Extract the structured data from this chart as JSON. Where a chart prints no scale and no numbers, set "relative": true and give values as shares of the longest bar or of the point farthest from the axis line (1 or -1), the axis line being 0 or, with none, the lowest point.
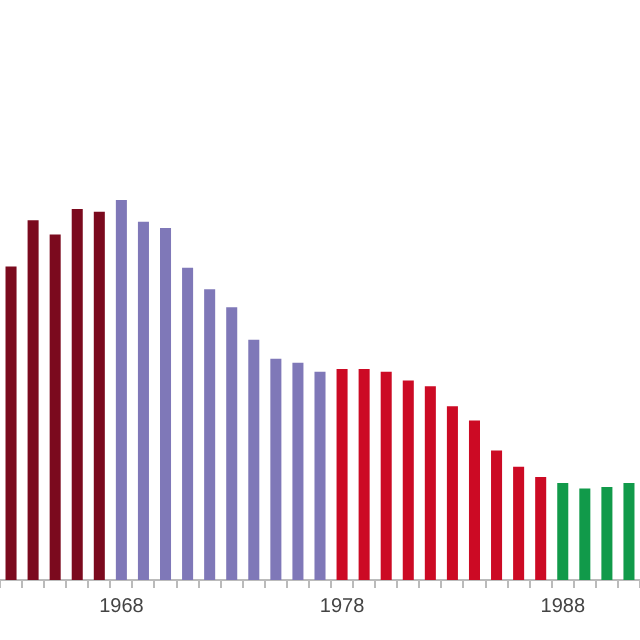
{
  "chart_data": {
    "type": "bar",
    "relative": true,
    "categories": [
      null,
      null,
      null,
      null,
      null,
      "1968",
      null,
      null,
      null,
      null,
      null,
      null,
      null,
      null,
      null,
      "1978",
      null,
      null,
      null,
      null,
      null,
      null,
      null,
      null,
      null,
      "1988",
      null,
      null,
      null
    ],
    "values": [
      0.825,
      0.947,
      0.909,
      0.976,
      0.969,
      1,
      0.943,
      0.926,
      0.822,
      0.765,
      0.718,
      0.632,
      0.582,
      0.572,
      0.548,
      0.555,
      0.555,
      0.548,
      0.525,
      0.51,
      0.457,
      0.42,
      0.341,
      0.298,
      0.271,
      0.255,
      0.241,
      0.245,
      0.255
    ],
    "colors": [
      "#7b0a1e",
      "#7b0a1e",
      "#7b0a1e",
      "#7b0a1e",
      "#7b0a1e",
      "#7f78b8",
      "#7f78b8",
      "#7f78b8",
      "#7f78b8",
      "#7f78b8",
      "#7f78b8",
      "#7f78b8",
      "#7f78b8",
      "#7f78b8",
      "#7f78b8",
      "#cc0a24",
      "#cc0a24",
      "#cc0a24",
      "#cc0a24",
      "#cc0a24",
      "#cc0a24",
      "#cc0a24",
      "#cc0a24",
      "#cc0a24",
      "#cc0a24",
      "#119a4a",
      "#119a4a",
      "#119a4a",
      "#119a4a"
    ],
    "grid": false,
    "legend": false
  }
}
